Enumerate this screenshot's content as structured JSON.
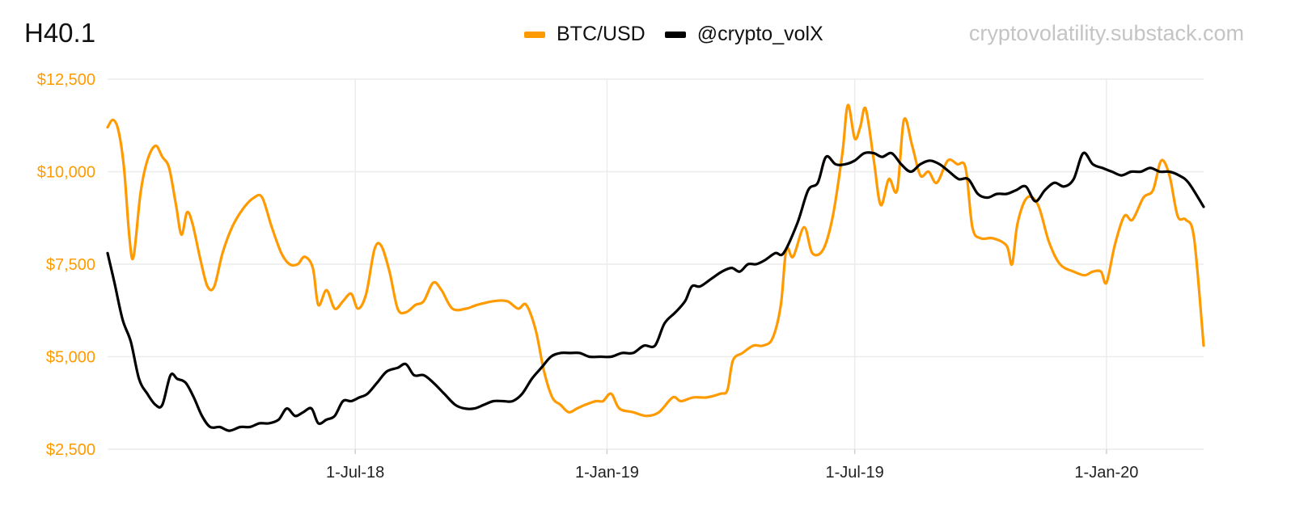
{
  "header": {
    "title": "H40.1",
    "watermark": "cryptovolatility.substack.com"
  },
  "colors": {
    "btc": "#ff9b00",
    "volx": "#000000",
    "grid": "#ececec",
    "y_axis_text": "#ff9b00"
  },
  "chart_data": {
    "type": "line",
    "title": "H40.1",
    "x_type": "date",
    "x_range": [
      "2018-01-01",
      "2020-03-12"
    ],
    "ylim": [
      2500,
      12500
    ],
    "yticks": [
      2500,
      5000,
      7500,
      10000,
      12500
    ],
    "ytick_labels": [
      "$2,500",
      "$5,000",
      "$7,500",
      "$10,000",
      "$12,500"
    ],
    "xticks": [
      "2018-07-01",
      "2019-01-01",
      "2019-07-01",
      "2020-01-01"
    ],
    "xtick_labels": [
      "1-Jul-18",
      "1-Jan-19",
      "1-Jul-19",
      "1-Jan-20"
    ],
    "grid": true,
    "legend_position": "top-center",
    "series": [
      {
        "name": "BTC/USD",
        "color": "#ff9b00",
        "points": [
          [
            "2018-01-01",
            11200
          ],
          [
            "2018-01-05",
            11400
          ],
          [
            "2018-01-09",
            11100
          ],
          [
            "2018-01-13",
            10100
          ],
          [
            "2018-01-17",
            8200
          ],
          [
            "2018-01-20",
            7700
          ],
          [
            "2018-01-25",
            9400
          ],
          [
            "2018-01-30",
            10300
          ],
          [
            "2018-02-05",
            10700
          ],
          [
            "2018-02-10",
            10400
          ],
          [
            "2018-02-15",
            10100
          ],
          [
            "2018-02-20",
            9100
          ],
          [
            "2018-02-24",
            8300
          ],
          [
            "2018-02-28",
            8900
          ],
          [
            "2018-03-04",
            8600
          ],
          [
            "2018-03-10",
            7600
          ],
          [
            "2018-03-15",
            6900
          ],
          [
            "2018-03-20",
            6900
          ],
          [
            "2018-03-26",
            7800
          ],
          [
            "2018-04-02",
            8500
          ],
          [
            "2018-04-10",
            9000
          ],
          [
            "2018-04-18",
            9300
          ],
          [
            "2018-04-24",
            9300
          ],
          [
            "2018-05-01",
            8500
          ],
          [
            "2018-05-08",
            7800
          ],
          [
            "2018-05-14",
            7500
          ],
          [
            "2018-05-20",
            7500
          ],
          [
            "2018-05-25",
            7700
          ],
          [
            "2018-05-31",
            7400
          ],
          [
            "2018-06-04",
            6400
          ],
          [
            "2018-06-10",
            6800
          ],
          [
            "2018-06-16",
            6300
          ],
          [
            "2018-06-22",
            6500
          ],
          [
            "2018-06-28",
            6700
          ],
          [
            "2018-07-03",
            6300
          ],
          [
            "2018-07-09",
            6700
          ],
          [
            "2018-07-15",
            7900
          ],
          [
            "2018-07-20",
            8000
          ],
          [
            "2018-07-26",
            7300
          ],
          [
            "2018-08-01",
            6300
          ],
          [
            "2018-08-07",
            6200
          ],
          [
            "2018-08-14",
            6400
          ],
          [
            "2018-08-20",
            6500
          ],
          [
            "2018-08-27",
            7000
          ],
          [
            "2018-09-02",
            6800
          ],
          [
            "2018-09-10",
            6300
          ],
          [
            "2018-09-20",
            6300
          ],
          [
            "2018-09-28",
            6400
          ],
          [
            "2018-10-10",
            6500
          ],
          [
            "2018-10-20",
            6500
          ],
          [
            "2018-10-28",
            6300
          ],
          [
            "2018-11-03",
            6400
          ],
          [
            "2018-11-10",
            5700
          ],
          [
            "2018-11-16",
            4600
          ],
          [
            "2018-11-22",
            3900
          ],
          [
            "2018-11-28",
            3700
          ],
          [
            "2018-12-04",
            3500
          ],
          [
            "2018-12-10",
            3600
          ],
          [
            "2018-12-16",
            3700
          ],
          [
            "2018-12-24",
            3800
          ],
          [
            "2018-12-29",
            3800
          ],
          [
            "2019-01-04",
            4000
          ],
          [
            "2019-01-10",
            3600
          ],
          [
            "2019-01-20",
            3500
          ],
          [
            "2019-01-30",
            3400
          ],
          [
            "2019-02-08",
            3500
          ],
          [
            "2019-02-18",
            3900
          ],
          [
            "2019-02-24",
            3800
          ],
          [
            "2019-03-05",
            3900
          ],
          [
            "2019-03-15",
            3900
          ],
          [
            "2019-03-25",
            4000
          ],
          [
            "2019-03-30",
            4100
          ],
          [
            "2019-04-03",
            4900
          ],
          [
            "2019-04-10",
            5100
          ],
          [
            "2019-04-18",
            5300
          ],
          [
            "2019-04-25",
            5300
          ],
          [
            "2019-05-02",
            5500
          ],
          [
            "2019-05-08",
            6400
          ],
          [
            "2019-05-12",
            7900
          ],
          [
            "2019-05-17",
            7700
          ],
          [
            "2019-05-25",
            8500
          ],
          [
            "2019-05-31",
            7800
          ],
          [
            "2019-06-08",
            7900
          ],
          [
            "2019-06-15",
            8800
          ],
          [
            "2019-06-22",
            10500
          ],
          [
            "2019-06-26",
            11800
          ],
          [
            "2019-07-01",
            10900
          ],
          [
            "2019-07-05",
            11200
          ],
          [
            "2019-07-09",
            11700
          ],
          [
            "2019-07-15",
            10300
          ],
          [
            "2019-07-20",
            9100
          ],
          [
            "2019-07-26",
            9800
          ],
          [
            "2019-08-01",
            9500
          ],
          [
            "2019-08-06",
            11400
          ],
          [
            "2019-08-12",
            10700
          ],
          [
            "2019-08-18",
            9900
          ],
          [
            "2019-08-24",
            10000
          ],
          [
            "2019-08-30",
            9700
          ],
          [
            "2019-09-07",
            10300
          ],
          [
            "2019-09-14",
            10200
          ],
          [
            "2019-09-20",
            10100
          ],
          [
            "2019-09-25",
            8500
          ],
          [
            "2019-10-01",
            8200
          ],
          [
            "2019-10-10",
            8200
          ],
          [
            "2019-10-20",
            8000
          ],
          [
            "2019-10-24",
            7500
          ],
          [
            "2019-10-28",
            8600
          ],
          [
            "2019-11-04",
            9300
          ],
          [
            "2019-11-12",
            9100
          ],
          [
            "2019-11-20",
            8100
          ],
          [
            "2019-11-28",
            7500
          ],
          [
            "2019-12-08",
            7300
          ],
          [
            "2019-12-16",
            7200
          ],
          [
            "2019-12-22",
            7300
          ],
          [
            "2019-12-28",
            7300
          ],
          [
            "2020-01-01",
            7000
          ],
          [
            "2020-01-07",
            8000
          ],
          [
            "2020-01-14",
            8800
          ],
          [
            "2020-01-20",
            8700
          ],
          [
            "2020-01-28",
            9300
          ],
          [
            "2020-02-04",
            9500
          ],
          [
            "2020-02-10",
            10300
          ],
          [
            "2020-02-16",
            9900
          ],
          [
            "2020-02-22",
            8800
          ],
          [
            "2020-02-28",
            8700
          ],
          [
            "2020-03-05",
            8200
          ],
          [
            "2020-03-12",
            5300
          ]
        ]
      },
      {
        "name": "@crypto_volX",
        "color": "#000000",
        "points": [
          [
            "2018-01-01",
            7800
          ],
          [
            "2018-01-06",
            7000
          ],
          [
            "2018-01-12",
            6000
          ],
          [
            "2018-01-18",
            5400
          ],
          [
            "2018-01-24",
            4400
          ],
          [
            "2018-01-30",
            4000
          ],
          [
            "2018-02-05",
            3700
          ],
          [
            "2018-02-10",
            3700
          ],
          [
            "2018-02-16",
            4500
          ],
          [
            "2018-02-21",
            4400
          ],
          [
            "2018-02-27",
            4300
          ],
          [
            "2018-03-05",
            3900
          ],
          [
            "2018-03-11",
            3400
          ],
          [
            "2018-03-17",
            3100
          ],
          [
            "2018-03-24",
            3100
          ],
          [
            "2018-03-31",
            3000
          ],
          [
            "2018-04-08",
            3100
          ],
          [
            "2018-04-15",
            3100
          ],
          [
            "2018-04-22",
            3200
          ],
          [
            "2018-04-29",
            3200
          ],
          [
            "2018-05-06",
            3300
          ],
          [
            "2018-05-12",
            3600
          ],
          [
            "2018-05-18",
            3400
          ],
          [
            "2018-05-24",
            3500
          ],
          [
            "2018-05-30",
            3600
          ],
          [
            "2018-06-04",
            3200
          ],
          [
            "2018-06-10",
            3300
          ],
          [
            "2018-06-16",
            3400
          ],
          [
            "2018-06-22",
            3800
          ],
          [
            "2018-06-28",
            3800
          ],
          [
            "2018-07-04",
            3900
          ],
          [
            "2018-07-10",
            4000
          ],
          [
            "2018-07-17",
            4300
          ],
          [
            "2018-07-24",
            4600
          ],
          [
            "2018-08-01",
            4700
          ],
          [
            "2018-08-07",
            4800
          ],
          [
            "2018-08-13",
            4500
          ],
          [
            "2018-08-20",
            4500
          ],
          [
            "2018-08-27",
            4300
          ],
          [
            "2018-09-04",
            4000
          ],
          [
            "2018-09-12",
            3700
          ],
          [
            "2018-09-19",
            3600
          ],
          [
            "2018-09-26",
            3600
          ],
          [
            "2018-10-03",
            3700
          ],
          [
            "2018-10-10",
            3800
          ],
          [
            "2018-10-17",
            3800
          ],
          [
            "2018-10-24",
            3800
          ],
          [
            "2018-10-31",
            4000
          ],
          [
            "2018-11-07",
            4400
          ],
          [
            "2018-11-14",
            4700
          ],
          [
            "2018-11-21",
            5000
          ],
          [
            "2018-11-28",
            5100
          ],
          [
            "2018-12-05",
            5100
          ],
          [
            "2018-12-12",
            5100
          ],
          [
            "2018-12-19",
            5000
          ],
          [
            "2018-12-27",
            5000
          ],
          [
            "2019-01-04",
            5000
          ],
          [
            "2019-01-12",
            5100
          ],
          [
            "2019-01-20",
            5100
          ],
          [
            "2019-01-28",
            5300
          ],
          [
            "2019-02-05",
            5300
          ],
          [
            "2019-02-12",
            5900
          ],
          [
            "2019-02-20",
            6200
          ],
          [
            "2019-02-27",
            6500
          ],
          [
            "2019-03-04",
            6900
          ],
          [
            "2019-03-10",
            6900
          ],
          [
            "2019-03-18",
            7100
          ],
          [
            "2019-03-26",
            7300
          ],
          [
            "2019-04-02",
            7400
          ],
          [
            "2019-04-08",
            7300
          ],
          [
            "2019-04-14",
            7500
          ],
          [
            "2019-04-20",
            7500
          ],
          [
            "2019-04-26",
            7600
          ],
          [
            "2019-05-04",
            7800
          ],
          [
            "2019-05-10",
            7800
          ],
          [
            "2019-05-20",
            8600
          ],
          [
            "2019-05-28",
            9500
          ],
          [
            "2019-06-04",
            9700
          ],
          [
            "2019-06-10",
            10400
          ],
          [
            "2019-06-17",
            10200
          ],
          [
            "2019-06-24",
            10200
          ],
          [
            "2019-07-01",
            10300
          ],
          [
            "2019-07-08",
            10500
          ],
          [
            "2019-07-15",
            10500
          ],
          [
            "2019-07-21",
            10400
          ],
          [
            "2019-07-28",
            10500
          ],
          [
            "2019-08-04",
            10200
          ],
          [
            "2019-08-11",
            10000
          ],
          [
            "2019-08-18",
            10200
          ],
          [
            "2019-08-25",
            10300
          ],
          [
            "2019-09-01",
            10200
          ],
          [
            "2019-09-08",
            10000
          ],
          [
            "2019-09-15",
            9800
          ],
          [
            "2019-09-22",
            9800
          ],
          [
            "2019-09-29",
            9400
          ],
          [
            "2019-10-06",
            9300
          ],
          [
            "2019-10-13",
            9400
          ],
          [
            "2019-10-20",
            9400
          ],
          [
            "2019-10-27",
            9500
          ],
          [
            "2019-11-03",
            9600
          ],
          [
            "2019-11-10",
            9200
          ],
          [
            "2019-11-17",
            9500
          ],
          [
            "2019-11-24",
            9700
          ],
          [
            "2019-12-01",
            9600
          ],
          [
            "2019-12-08",
            9800
          ],
          [
            "2019-12-15",
            10500
          ],
          [
            "2019-12-22",
            10200
          ],
          [
            "2019-12-29",
            10100
          ],
          [
            "2020-01-05",
            10000
          ],
          [
            "2020-01-12",
            9900
          ],
          [
            "2020-01-19",
            10000
          ],
          [
            "2020-01-26",
            10000
          ],
          [
            "2020-02-02",
            10100
          ],
          [
            "2020-02-09",
            10000
          ],
          [
            "2020-02-16",
            10000
          ],
          [
            "2020-02-23",
            9900
          ],
          [
            "2020-03-01",
            9700
          ],
          [
            "2020-03-12",
            9050
          ]
        ]
      }
    ]
  }
}
